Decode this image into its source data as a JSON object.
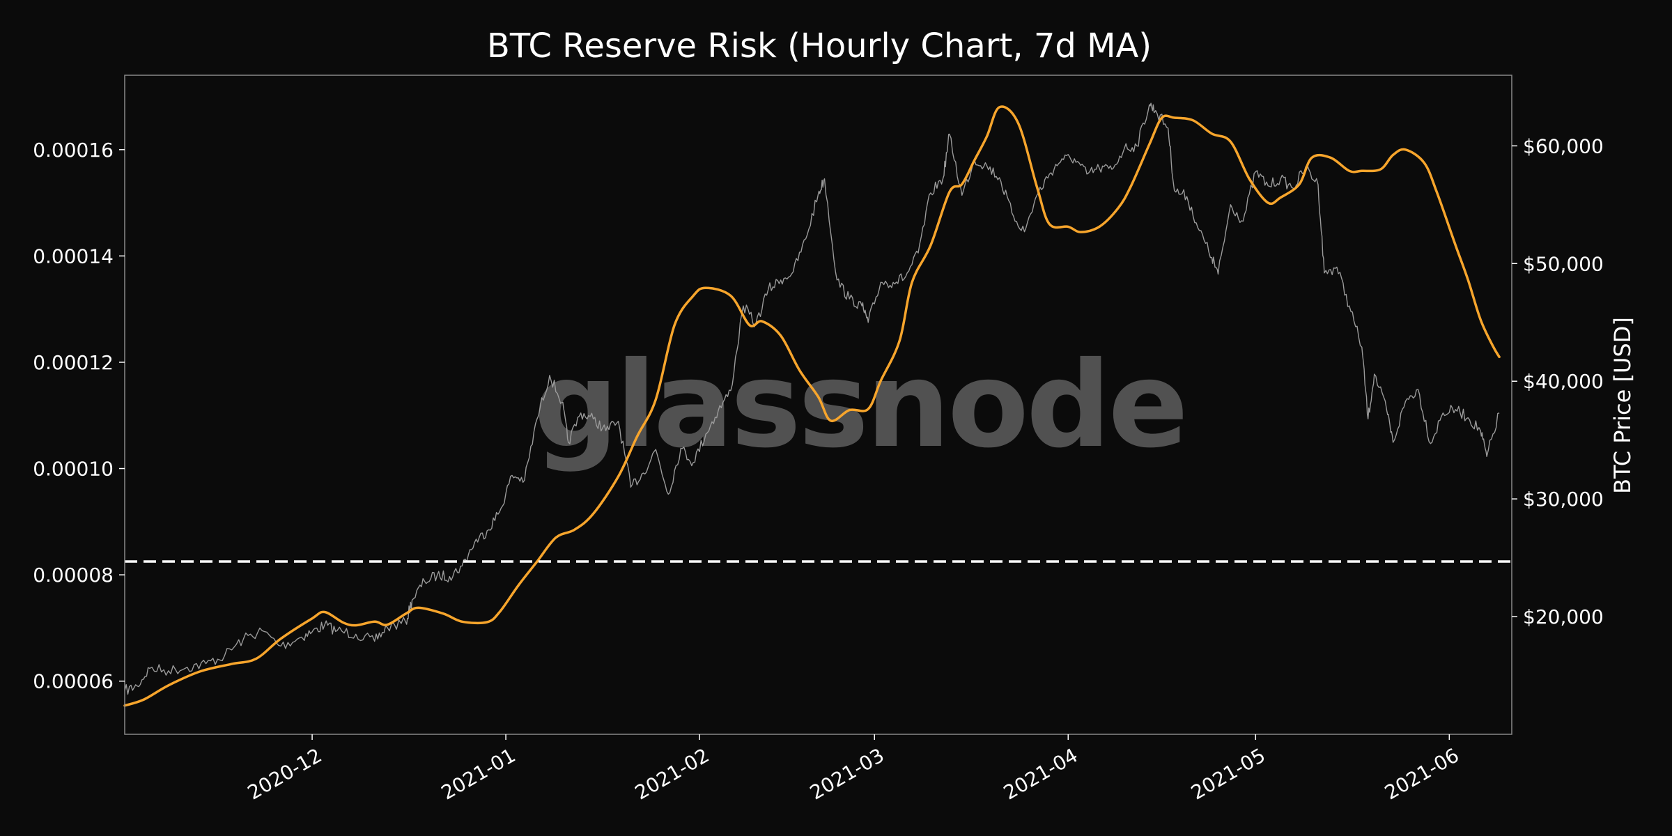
{
  "chart_data": {
    "type": "line",
    "title": "BTC Reserve Risk (Hourly Chart, 7d MA)",
    "watermark": "glassnode",
    "xlabel": "",
    "ylabel_left": "",
    "ylabel_right": "BTC Price [USD]",
    "x_ticks": [
      "2020-12",
      "2021-01",
      "2021-02",
      "2021-03",
      "2021-04",
      "2021-05",
      "2021-06"
    ],
    "y_left_ticks": [
      "0.00006",
      "0.00008",
      "0.00010",
      "0.00012",
      "0.00014",
      "0.00016"
    ],
    "y_right_ticks": [
      "$20,000",
      "$30,000",
      "$40,000",
      "$50,000",
      "$60,000"
    ],
    "xlim": [
      "2020-11-01",
      "2021-06-11"
    ],
    "ylim_left": [
      5e-05,
      0.000174
    ],
    "ylim_right": [
      10000,
      66000
    ],
    "grid": false,
    "colors": {
      "background": "#0b0b0b",
      "frame": "#8a8a8a",
      "reserve_risk": "#f7a52c",
      "price": "#9a9a9a",
      "threshold": "#ffffff"
    },
    "threshold_line": {
      "y": 8.25e-05,
      "style": "dashed"
    },
    "series": [
      {
        "key": "reserve_risk",
        "axis": "left",
        "points": [
          [
            "2020-11-01",
            5.54e-05
          ],
          [
            "2020-11-04",
            5.65e-05
          ],
          [
            "2020-11-08",
            5.92e-05
          ],
          [
            "2020-11-13",
            6.18e-05
          ],
          [
            "2020-11-18",
            6.32e-05
          ],
          [
            "2020-11-22",
            6.42e-05
          ],
          [
            "2020-11-26",
            6.8e-05
          ],
          [
            "2020-12-01",
            7.18e-05
          ],
          [
            "2020-12-03",
            7.3e-05
          ],
          [
            "2020-12-06",
            7.1e-05
          ],
          [
            "2020-12-08",
            7.05e-05
          ],
          [
            "2020-12-11",
            7.12e-05
          ],
          [
            "2020-12-13",
            7.06e-05
          ],
          [
            "2020-12-16",
            7.27e-05
          ],
          [
            "2020-12-18",
            7.38e-05
          ],
          [
            "2020-12-22",
            7.27e-05
          ],
          [
            "2020-12-25",
            7.12e-05
          ],
          [
            "2020-12-29",
            7.11e-05
          ],
          [
            "2020-12-31",
            7.3e-05
          ],
          [
            "2021-01-03",
            7.8e-05
          ],
          [
            "2021-01-06",
            8.25e-05
          ],
          [
            "2021-01-09",
            8.7e-05
          ],
          [
            "2021-01-12",
            8.85e-05
          ],
          [
            "2021-01-15",
            9.15e-05
          ],
          [
            "2021-01-19",
            9.85e-05
          ],
          [
            "2021-01-22",
            0.000106
          ],
          [
            "2021-01-25",
            0.000113
          ],
          [
            "2021-01-28",
            0.000127
          ],
          [
            "2021-01-31",
            0.0001325
          ],
          [
            "2021-02-02",
            0.000134
          ],
          [
            "2021-02-06",
            0.0001325
          ],
          [
            "2021-02-09",
            0.000127
          ],
          [
            "2021-02-11",
            0.0001277
          ],
          [
            "2021-02-14",
            0.000125
          ],
          [
            "2021-02-17",
            0.0001185
          ],
          [
            "2021-02-20",
            0.0001135
          ],
          [
            "2021-02-22",
            0.000109
          ],
          [
            "2021-02-25",
            0.000111
          ],
          [
            "2021-02-28",
            0.0001112
          ],
          [
            "2021-03-02",
            0.0001165
          ],
          [
            "2021-03-05",
            0.000124
          ],
          [
            "2021-03-07",
            0.000135
          ],
          [
            "2021-03-10",
            0.000142
          ],
          [
            "2021-03-13",
            0.000152
          ],
          [
            "2021-03-15",
            0.0001535
          ],
          [
            "2021-03-17",
            0.000158
          ],
          [
            "2021-03-19",
            0.0001625
          ],
          [
            "2021-03-21",
            0.000168
          ],
          [
            "2021-03-24",
            0.000165
          ],
          [
            "2021-03-27",
            0.000153
          ],
          [
            "2021-03-29",
            0.000146
          ],
          [
            "2021-04-01",
            0.0001455
          ],
          [
            "2021-04-03",
            0.0001445
          ],
          [
            "2021-04-06",
            0.0001455
          ],
          [
            "2021-04-09",
            0.000149
          ],
          [
            "2021-04-11",
            0.000153
          ],
          [
            "2021-04-14",
            0.000161
          ],
          [
            "2021-04-16",
            0.000166
          ],
          [
            "2021-04-18",
            0.000166
          ],
          [
            "2021-04-21",
            0.0001655
          ],
          [
            "2021-04-24",
            0.000163
          ],
          [
            "2021-04-27",
            0.0001615
          ],
          [
            "2021-04-30",
            0.0001545
          ],
          [
            "2021-05-03",
            0.00015
          ],
          [
            "2021-05-05",
            0.000151
          ],
          [
            "2021-05-08",
            0.0001535
          ],
          [
            "2021-05-10",
            0.0001585
          ],
          [
            "2021-05-13",
            0.0001585
          ],
          [
            "2021-05-16",
            0.000156
          ],
          [
            "2021-05-18",
            0.000156
          ],
          [
            "2021-05-21",
            0.0001563
          ],
          [
            "2021-05-23",
            0.000159
          ],
          [
            "2021-05-25",
            0.00016
          ],
          [
            "2021-05-28",
            0.0001575
          ],
          [
            "2021-05-30",
            0.000152
          ],
          [
            "2021-06-02",
            0.000142
          ],
          [
            "2021-06-04",
            0.0001355
          ],
          [
            "2021-06-06",
            0.000128
          ],
          [
            "2021-06-08",
            0.000123
          ],
          [
            "2021-06-09",
            0.000121
          ]
        ]
      },
      {
        "key": "price",
        "axis": "right",
        "points": [
          [
            "2020-11-01",
            13700
          ],
          [
            "2020-11-03",
            14100
          ],
          [
            "2020-11-05",
            15600
          ],
          [
            "2020-11-08",
            15400
          ],
          [
            "2020-11-11",
            15700
          ],
          [
            "2020-11-14",
            16000
          ],
          [
            "2020-11-17",
            16700
          ],
          [
            "2020-11-20",
            18100
          ],
          [
            "2020-11-23",
            18800
          ],
          [
            "2020-11-26",
            17500
          ],
          [
            "2020-11-29",
            18200
          ],
          [
            "2020-12-01",
            18700
          ],
          [
            "2020-12-03",
            19300
          ],
          [
            "2020-12-05",
            18800
          ],
          [
            "2020-12-08",
            18500
          ],
          [
            "2020-12-11",
            17900
          ],
          [
            "2020-12-13",
            19100
          ],
          [
            "2020-12-16",
            19500
          ],
          [
            "2020-12-17",
            21400
          ],
          [
            "2020-12-19",
            23000
          ],
          [
            "2020-12-21",
            23500
          ],
          [
            "2020-12-23",
            23400
          ],
          [
            "2020-12-25",
            24300
          ],
          [
            "2020-12-27",
            26300
          ],
          [
            "2020-12-29",
            27300
          ],
          [
            "2020-12-31",
            28900
          ],
          [
            "2021-01-02",
            32000
          ],
          [
            "2021-01-04",
            31600
          ],
          [
            "2021-01-06",
            36800
          ],
          [
            "2021-01-08",
            40500
          ],
          [
            "2021-01-10",
            38200
          ],
          [
            "2021-01-11",
            34800
          ],
          [
            "2021-01-13",
            37300
          ],
          [
            "2021-01-15",
            36800
          ],
          [
            "2021-01-17",
            35800
          ],
          [
            "2021-01-19",
            36600
          ],
          [
            "2021-01-21",
            31000
          ],
          [
            "2021-01-23",
            32200
          ],
          [
            "2021-01-25",
            34200
          ],
          [
            "2021-01-27",
            30400
          ],
          [
            "2021-01-29",
            34300
          ],
          [
            "2021-01-31",
            33100
          ],
          [
            "2021-02-02",
            35500
          ],
          [
            "2021-02-04",
            37500
          ],
          [
            "2021-02-06",
            39200
          ],
          [
            "2021-02-08",
            46400
          ],
          [
            "2021-02-10",
            44800
          ],
          [
            "2021-02-12",
            47800
          ],
          [
            "2021-02-14",
            48600
          ],
          [
            "2021-02-16",
            49300
          ],
          [
            "2021-02-18",
            52100
          ],
          [
            "2021-02-20",
            55900
          ],
          [
            "2021-02-21",
            57200
          ],
          [
            "2021-02-23",
            48600
          ],
          [
            "2021-02-25",
            47000
          ],
          [
            "2021-02-27",
            46400
          ],
          [
            "2021-02-28",
            45000
          ],
          [
            "2021-03-02",
            48400
          ],
          [
            "2021-03-04",
            48400
          ],
          [
            "2021-03-06",
            48900
          ],
          [
            "2021-03-08",
            50900
          ],
          [
            "2021-03-10",
            56000
          ],
          [
            "2021-03-12",
            57300
          ],
          [
            "2021-03-13",
            61000
          ],
          [
            "2021-03-15",
            55800
          ],
          [
            "2021-03-17",
            58800
          ],
          [
            "2021-03-19",
            58300
          ],
          [
            "2021-03-21",
            57300
          ],
          [
            "2021-03-23",
            54300
          ],
          [
            "2021-03-25",
            52700
          ],
          [
            "2021-03-27",
            55800
          ],
          [
            "2021-03-29",
            57600
          ],
          [
            "2021-03-31",
            58900
          ],
          [
            "2021-04-02",
            58900
          ],
          [
            "2021-04-04",
            57600
          ],
          [
            "2021-04-06",
            58100
          ],
          [
            "2021-04-08",
            58000
          ],
          [
            "2021-04-10",
            59800
          ],
          [
            "2021-04-12",
            60000
          ],
          [
            "2021-04-14",
            63500
          ],
          [
            "2021-04-15",
            63000
          ],
          [
            "2021-04-17",
            61500
          ],
          [
            "2021-04-18",
            56200
          ],
          [
            "2021-04-20",
            55700
          ],
          [
            "2021-04-22",
            52800
          ],
          [
            "2021-04-24",
            50500
          ],
          [
            "2021-04-25",
            49100
          ],
          [
            "2021-04-27",
            55000
          ],
          [
            "2021-04-29",
            53600
          ],
          [
            "2021-05-01",
            57800
          ],
          [
            "2021-05-03",
            56600
          ],
          [
            "2021-05-05",
            57200
          ],
          [
            "2021-05-07",
            56400
          ],
          [
            "2021-05-09",
            58200
          ],
          [
            "2021-05-11",
            56700
          ],
          [
            "2021-05-12",
            49200
          ],
          [
            "2021-05-14",
            49700
          ],
          [
            "2021-05-16",
            46400
          ],
          [
            "2021-05-18",
            42900
          ],
          [
            "2021-05-19",
            36800
          ],
          [
            "2021-05-20",
            40600
          ],
          [
            "2021-05-22",
            37500
          ],
          [
            "2021-05-23",
            34800
          ],
          [
            "2021-05-25",
            38300
          ],
          [
            "2021-05-27",
            39300
          ],
          [
            "2021-05-29",
            34700
          ],
          [
            "2021-05-31",
            37300
          ],
          [
            "2021-06-02",
            37600
          ],
          [
            "2021-06-04",
            36900
          ],
          [
            "2021-06-06",
            35800
          ],
          [
            "2021-06-07",
            33600
          ],
          [
            "2021-06-09",
            37300
          ]
        ]
      }
    ]
  }
}
